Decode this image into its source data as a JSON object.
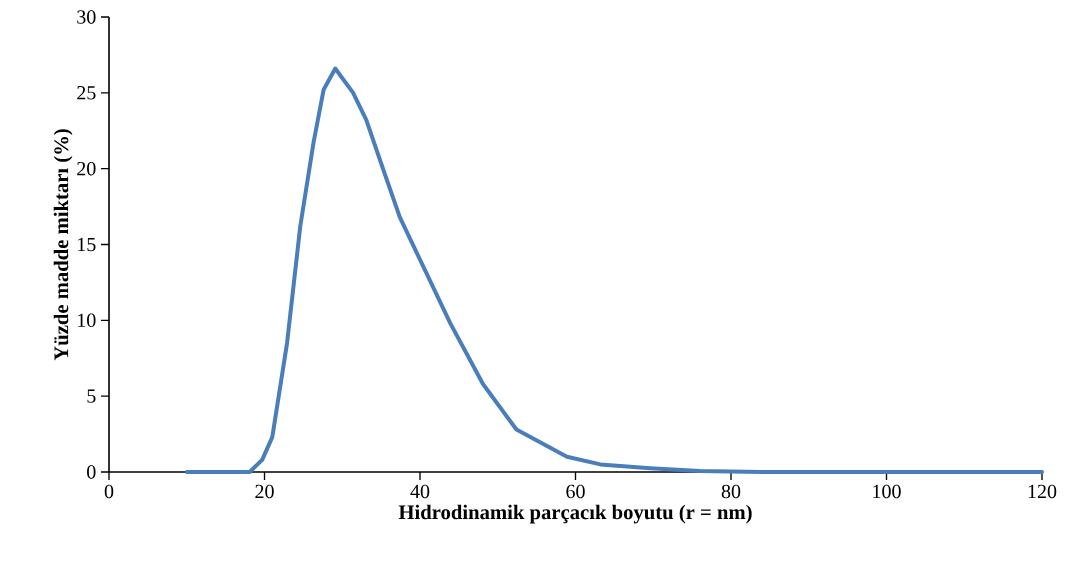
{
  "chart_data": {
    "type": "line",
    "xlabel": "Hidrodinamik parçacık boyutu (r = nm)",
    "ylabel": "Yüzde madde miktarı (%)",
    "xlim": [
      0,
      120
    ],
    "xticks": [
      0,
      20,
      40,
      60,
      80,
      100,
      120
    ],
    "ylim": [
      0,
      30
    ],
    "yticks": [
      0,
      5,
      10,
      15,
      20,
      25,
      30
    ],
    "grid": false,
    "marker": "none",
    "line_style": "solid",
    "series": [
      {
        "color": "#4a7ebb",
        "x": [
          10,
          16.2,
          18.1,
          19.7,
          21,
          22.9,
          24.6,
          26.3,
          27.6,
          29.1,
          31.4,
          33.1,
          35.3,
          37.4,
          40,
          43.9,
          48.1,
          52.4,
          58.9,
          63.2,
          69.6,
          76,
          84,
          120
        ],
        "values": [
          0,
          0,
          0,
          0.8,
          2.3,
          8.5,
          16.2,
          21.7,
          25.2,
          26.6,
          25,
          23.2,
          19.9,
          16.8,
          14,
          9.8,
          5.8,
          2.8,
          1.0,
          0.5,
          0.25,
          0.07,
          0,
          0
        ]
      }
    ]
  }
}
